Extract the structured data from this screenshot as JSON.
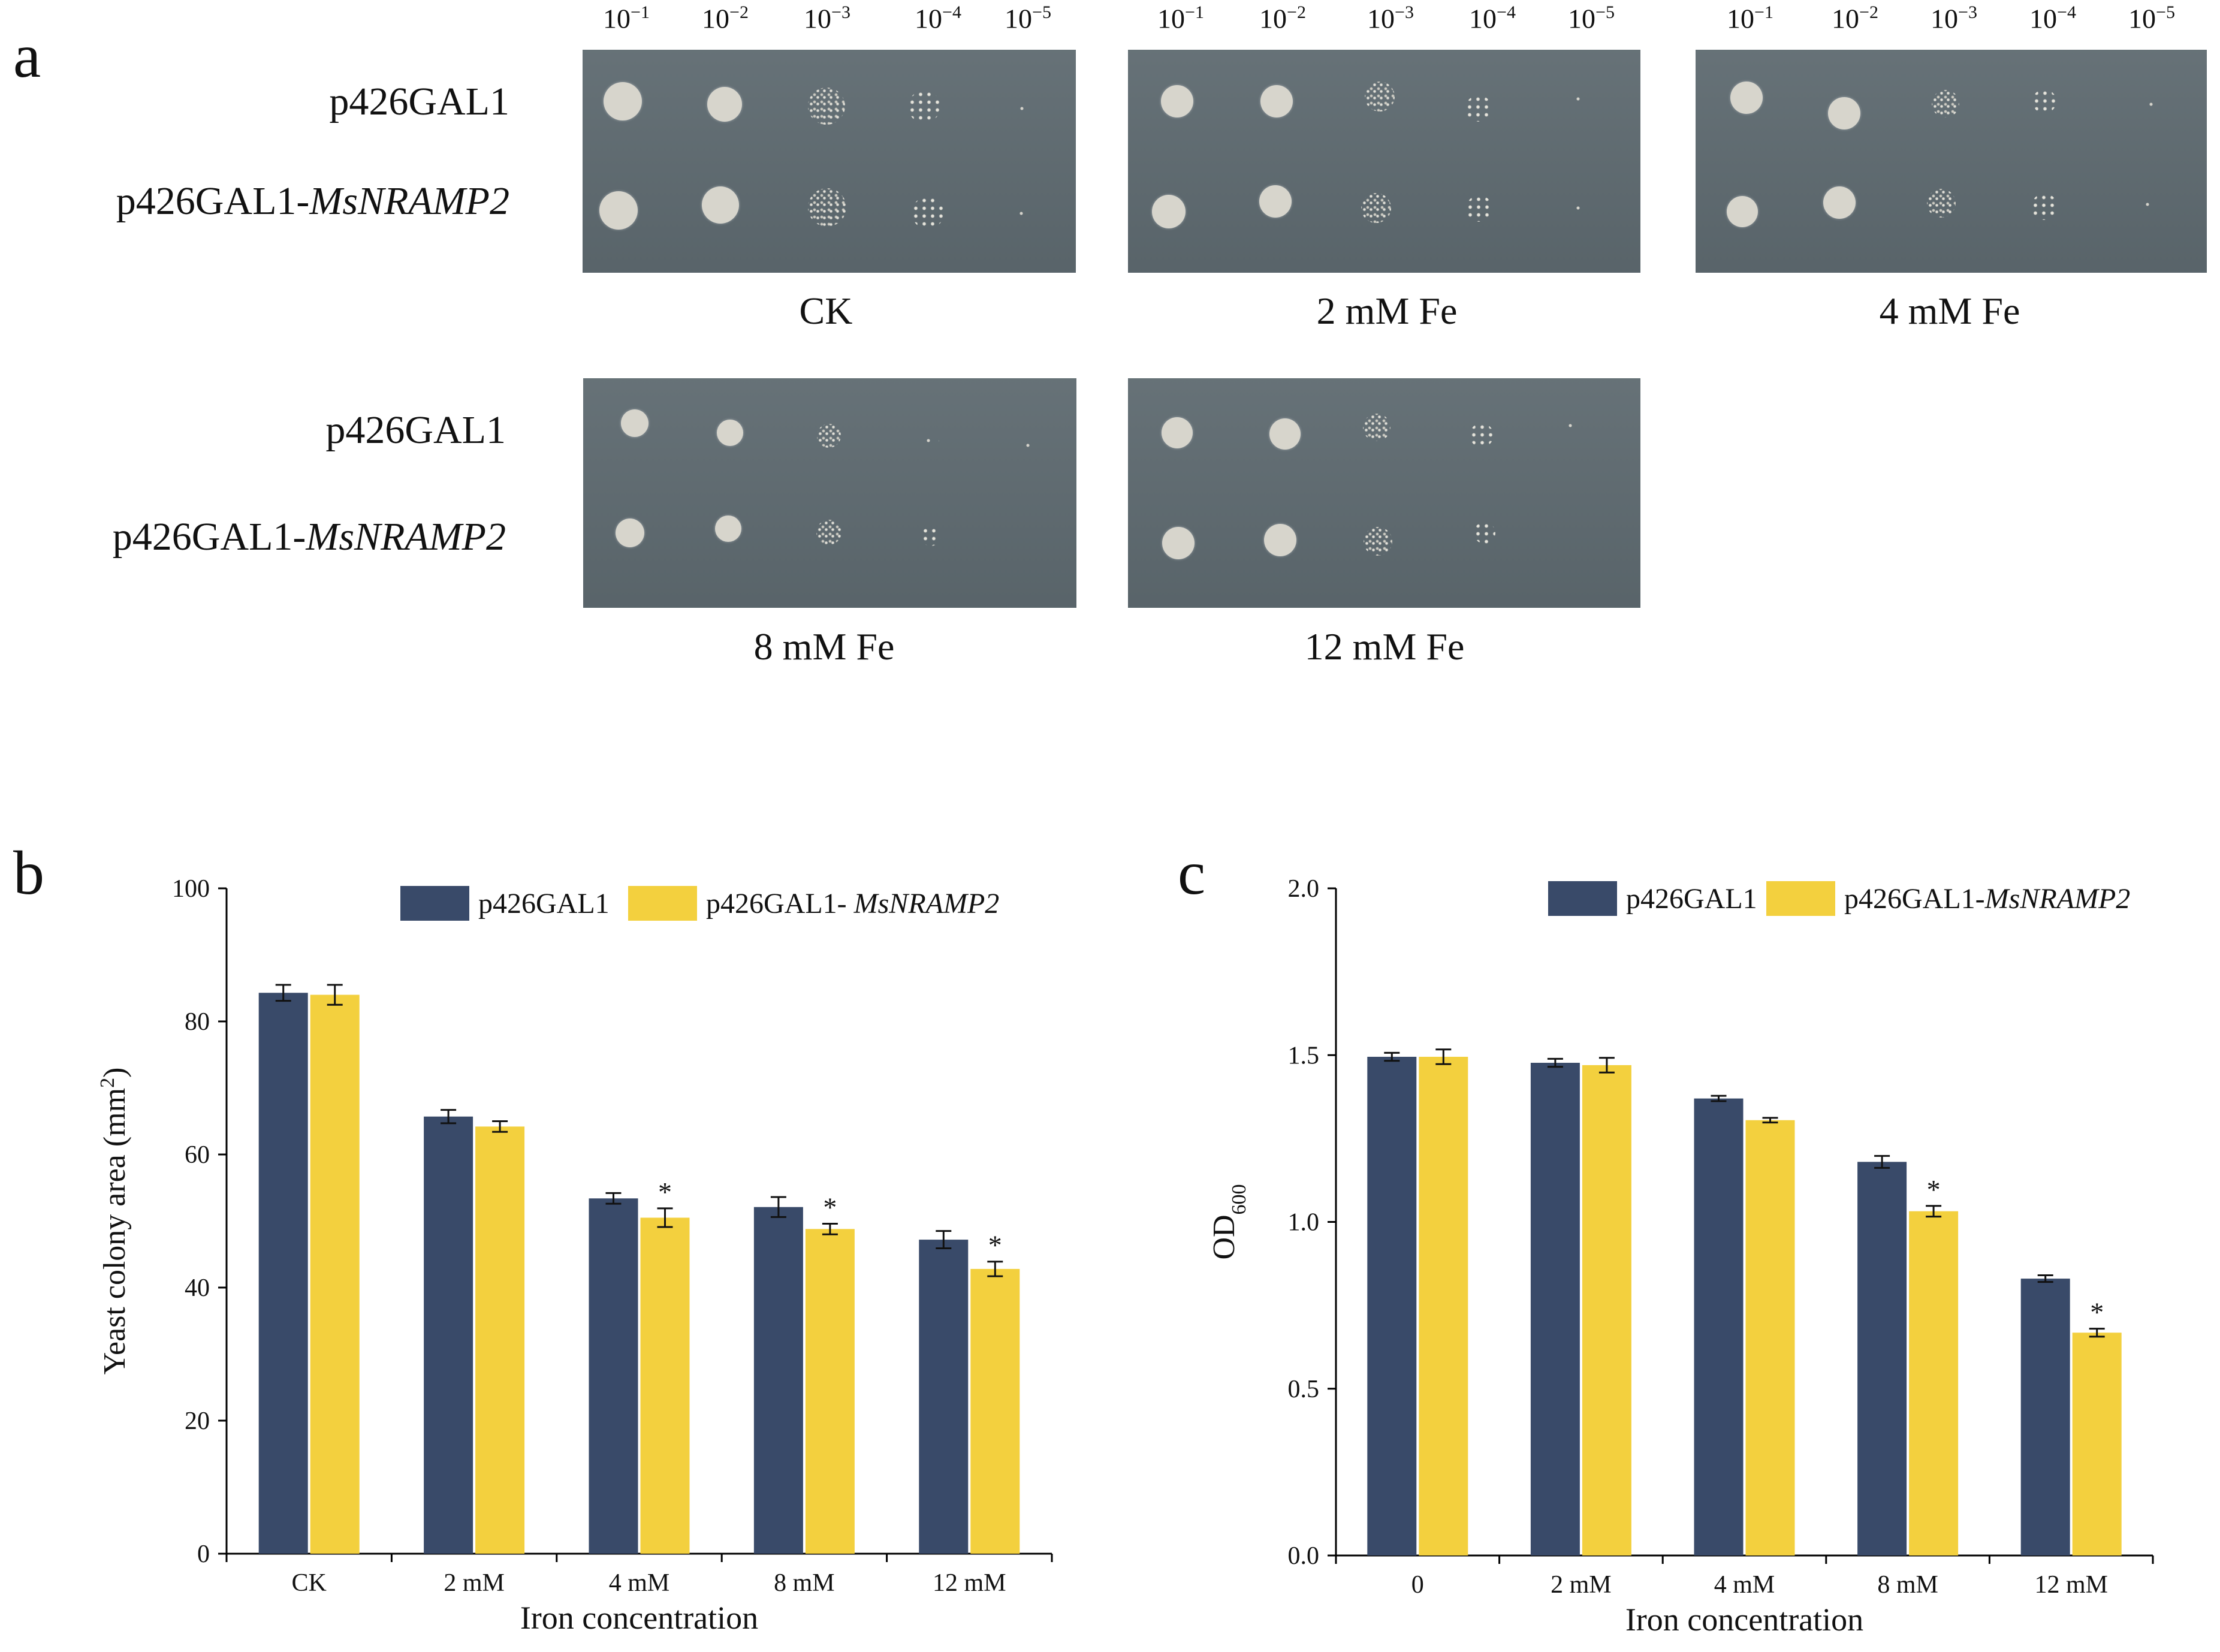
{
  "panel_a": {
    "letter": "a",
    "strains": [
      "p426GAL1",
      "p426GAL1-",
      "MsNRAMP2"
    ],
    "dilution_base": "10",
    "dilution_exponents": [
      "−1",
      "−2",
      "−3",
      "−4",
      "−5"
    ],
    "plates": [
      {
        "caption": "CK"
      },
      {
        "caption": "2 mM Fe"
      },
      {
        "caption": "4 mM Fe"
      },
      {
        "caption": "8 mM Fe"
      },
      {
        "caption": "12 mM Fe"
      }
    ]
  },
  "colors": {
    "control": "#394a69",
    "transgenic": "#f3d03e",
    "plate": "#5e6a70"
  },
  "chart_data": [
    {
      "id": "b",
      "letter": "b",
      "type": "bar",
      "title": "",
      "xlabel": "Iron concentration",
      "ylabel_main": "Yeast colony area (mm",
      "ylabel_sup": "2",
      "ylabel_end": ")",
      "categories": [
        "CK",
        "2 mM",
        "4 mM",
        "8 mM",
        "12 mM"
      ],
      "ylim": [
        0,
        100
      ],
      "yticks": [
        0,
        20,
        40,
        60,
        80,
        100
      ],
      "ytick_labels": [
        "0",
        "20",
        "40",
        "60",
        "80",
        "100"
      ],
      "legend_position": "top-right",
      "series": [
        {
          "name": "p426GAL1",
          "name_italic": "",
          "color": "#394a69",
          "values": [
            84.3,
            65.7,
            53.4,
            52.1,
            47.2
          ],
          "errors": [
            1.2,
            1.0,
            0.8,
            1.5,
            1.3
          ],
          "marks": [
            "",
            "",
            "",
            "",
            ""
          ]
        },
        {
          "name": "p426GAL1- ",
          "name_italic": "MsNRAMP2",
          "color": "#f3d03e",
          "values": [
            84.0,
            64.2,
            50.5,
            48.8,
            42.8
          ],
          "errors": [
            1.5,
            0.8,
            1.4,
            0.8,
            1.1
          ],
          "marks": [
            "",
            "",
            "*",
            "*",
            "*"
          ]
        }
      ]
    },
    {
      "id": "c",
      "letter": "c",
      "type": "bar",
      "title": "",
      "xlabel": "Iron concentration",
      "ylabel_main": "OD",
      "ylabel_sub": "600",
      "categories": [
        "0",
        "2 mM",
        "4 mM",
        "8 mM",
        "12 mM"
      ],
      "ylim": [
        0,
        2.0
      ],
      "yticks": [
        0,
        0.5,
        1.0,
        1.5,
        2.0
      ],
      "ytick_labels": [
        "0.0",
        "0.5",
        "1.0",
        "1.5",
        "2.0"
      ],
      "legend_position": "top-right",
      "series": [
        {
          "name": "p426GAL1",
          "name_italic": "",
          "color": "#394a69",
          "values": [
            1.495,
            1.477,
            1.37,
            1.18,
            0.83
          ],
          "errors": [
            0.012,
            0.012,
            0.008,
            0.018,
            0.01
          ],
          "marks": [
            "",
            "",
            "",
            "",
            ""
          ]
        },
        {
          "name": "p426GAL1-",
          "name_italic": "MsNRAMP2",
          "color": "#f3d03e",
          "values": [
            1.495,
            1.47,
            1.305,
            1.032,
            0.668
          ],
          "errors": [
            0.022,
            0.022,
            0.007,
            0.016,
            0.012
          ],
          "marks": [
            "",
            "",
            "",
            "*",
            "*"
          ]
        }
      ]
    }
  ]
}
